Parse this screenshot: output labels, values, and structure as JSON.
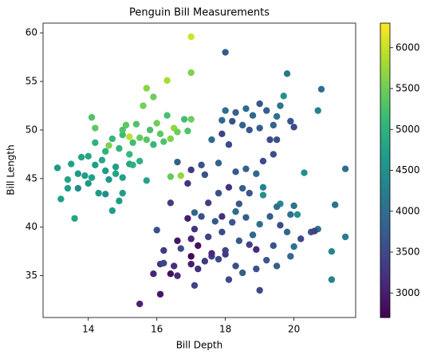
{
  "chart_data": {
    "type": "scatter",
    "title": "Penguin Bill Measurements",
    "x_label": "Bill Depth",
    "y_label": "Bill Length",
    "xlim": [
      12.68,
      21.8
    ],
    "ylim": [
      30.7,
      61.0
    ],
    "xticks": [
      14,
      16,
      18,
      20
    ],
    "yticks": [
      35,
      40,
      45,
      50,
      55,
      60
    ],
    "colormap": "viridis",
    "clim": [
      2700,
      6300
    ],
    "cticks": [
      3000,
      3500,
      4000,
      4500,
      5000,
      5500,
      6000
    ],
    "points": [
      [
        13.2,
        42.9,
        4750
      ],
      [
        13.1,
        46.1,
        4600
      ],
      [
        13.4,
        44.9,
        4800
      ],
      [
        13.5,
        46.5,
        4750
      ],
      [
        13.7,
        45.5,
        4650
      ],
      [
        13.7,
        44.0,
        4400
      ],
      [
        13.8,
        47.2,
        4800
      ],
      [
        13.9,
        45.3,
        4700
      ],
      [
        14.0,
        44.5,
        4600
      ],
      [
        14.0,
        47.3,
        4800
      ],
      [
        14.1,
        45.1,
        4750
      ],
      [
        14.2,
        48.7,
        5000
      ],
      [
        14.2,
        46.4,
        4700
      ],
      [
        14.3,
        43.5,
        4650
      ],
      [
        14.4,
        46.9,
        4850
      ],
      [
        14.5,
        45.8,
        4700
      ],
      [
        14.5,
        47.8,
        5000
      ],
      [
        14.6,
        44.9,
        4600
      ],
      [
        14.7,
        49.1,
        5100
      ],
      [
        14.8,
        45.5,
        4800
      ],
      [
        14.8,
        46.2,
        4700
      ],
      [
        14.9,
        48.1,
        5050
      ],
      [
        14.9,
        42.7,
        4650
      ],
      [
        15.0,
        45.1,
        4750
      ],
      [
        15.0,
        49.5,
        5150
      ],
      [
        15.0,
        50.0,
        5300
      ],
      [
        15.1,
        50.5,
        5400
      ],
      [
        15.2,
        47.5,
        5100
      ],
      [
        15.2,
        46.5,
        4800
      ],
      [
        15.3,
        48.7,
        5200
      ],
      [
        15.4,
        50.6,
        5300
      ],
      [
        15.5,
        49.2,
        5450
      ],
      [
        15.5,
        46.8,
        5000
      ],
      [
        15.6,
        52.5,
        5550
      ],
      [
        15.7,
        49.0,
        5350
      ],
      [
        15.7,
        54.3,
        5650
      ],
      [
        15.8,
        50.0,
        5250
      ],
      [
        15.9,
        53.4,
        5500
      ],
      [
        15.9,
        48.5,
        5100
      ],
      [
        16.0,
        50.7,
        5500
      ],
      [
        16.1,
        49.6,
        5400
      ],
      [
        16.2,
        48.8,
        5300
      ],
      [
        16.3,
        55.1,
        5850
      ],
      [
        16.4,
        49.1,
        5600
      ],
      [
        16.5,
        50.2,
        5700
      ],
      [
        16.6,
        49.8,
        5500
      ],
      [
        16.4,
        45.2,
        5450
      ],
      [
        16.7,
        45.3,
        5700
      ],
      [
        16.9,
        49.9,
        5300
      ],
      [
        17.0,
        51.1,
        5500
      ],
      [
        17.0,
        55.9,
        5600
      ],
      [
        17.0,
        59.6,
        6050
      ],
      [
        14.1,
        51.3,
        5300
      ],
      [
        14.2,
        50.2,
        5400
      ],
      [
        13.6,
        40.9,
        4800
      ],
      [
        14.5,
        43.4,
        4450
      ],
      [
        15.0,
        43.5,
        4700
      ],
      [
        14.7,
        41.7,
        4700
      ],
      [
        16.8,
        51.1,
        5200
      ],
      [
        16.3,
        51.5,
        5250
      ],
      [
        13.4,
        44.0,
        4700
      ],
      [
        14.6,
        48.4,
        5600
      ],
      [
        15.2,
        49.3,
        5950
      ],
      [
        15.7,
        44.8,
        4800
      ],
      [
        15.3,
        46.4,
        5000
      ],
      [
        17.9,
        51.0,
        3900
      ],
      [
        18.0,
        52.0,
        4000
      ],
      [
        18.3,
        51.8,
        3800
      ],
      [
        18.6,
        52.2,
        3950
      ],
      [
        18.8,
        51.5,
        3900
      ],
      [
        19.0,
        52.7,
        3700
      ],
      [
        19.2,
        52.0,
        3800
      ],
      [
        19.4,
        50.5,
        3850
      ],
      [
        19.5,
        51.4,
        4050
      ],
      [
        19.7,
        53.5,
        4500
      ],
      [
        19.6,
        52.5,
        4100
      ],
      [
        19.0,
        50.2,
        3800
      ],
      [
        18.7,
        50.0,
        3700
      ],
      [
        18.5,
        50.5,
        3850
      ],
      [
        18.2,
        50.9,
        3600
      ],
      [
        17.9,
        49.6,
        3400
      ],
      [
        17.6,
        49.0,
        3900
      ],
      [
        18.1,
        48.5,
        3500
      ],
      [
        19.3,
        49.0,
        3500
      ],
      [
        19.5,
        49.0,
        3600
      ],
      [
        19.9,
        50.9,
        3650
      ],
      [
        20.0,
        50.3,
        3500
      ],
      [
        20.8,
        54.2,
        4000
      ],
      [
        20.7,
        52.0,
        4300
      ],
      [
        19.8,
        55.8,
        4100
      ],
      [
        18.0,
        58.0,
        3700
      ],
      [
        17.3,
        46.4,
        3600
      ],
      [
        17.8,
        46.6,
        3850
      ],
      [
        18.3,
        45.7,
        3700
      ],
      [
        18.6,
        46.0,
        3800
      ],
      [
        18.9,
        45.5,
        3900
      ],
      [
        19.1,
        46.8,
        3500
      ],
      [
        19.4,
        47.5,
        3550
      ],
      [
        16.6,
        46.7,
        3800
      ],
      [
        17.4,
        45.4,
        3600
      ],
      [
        16.4,
        42.5,
        3350
      ],
      [
        17.8,
        43.5,
        3600
      ],
      [
        18.4,
        42.4,
        3700
      ],
      [
        19.1,
        43.3,
        4500
      ],
      [
        20.3,
        45.6,
        4500
      ],
      [
        21.5,
        46.0,
        4000
      ],
      [
        17.0,
        45.9,
        3300
      ],
      [
        17.5,
        42.5,
        3350
      ],
      [
        18.7,
        43.5,
        3650
      ],
      [
        19.6,
        42.4,
        4400
      ],
      [
        15.5,
        32.1,
        3050
      ],
      [
        16.1,
        33.1,
        2900
      ],
      [
        17.1,
        34.0,
        3400
      ],
      [
        16.6,
        35.0,
        3150
      ],
      [
        15.9,
        35.2,
        3050
      ],
      [
        16.1,
        36.2,
        3300
      ],
      [
        16.5,
        36.0,
        3200
      ],
      [
        17.0,
        36.2,
        3000
      ],
      [
        17.2,
        35.7,
        3200
      ],
      [
        17.4,
        36.5,
        3300
      ],
      [
        17.6,
        37.0,
        3400
      ],
      [
        17.8,
        36.7,
        3500
      ],
      [
        18.0,
        37.6,
        3450
      ],
      [
        18.3,
        36.0,
        3550
      ],
      [
        18.5,
        35.3,
        3800
      ],
      [
        18.9,
        35.7,
        3600
      ],
      [
        19.0,
        33.5,
        3500
      ],
      [
        19.2,
        36.6,
        3700
      ],
      [
        19.5,
        36.0,
        3800
      ],
      [
        19.9,
        37.0,
        3900
      ],
      [
        20.0,
        38.0,
        4100
      ],
      [
        20.5,
        39.5,
        3600
      ],
      [
        20.7,
        39.8,
        4000
      ],
      [
        21.1,
        37.5,
        4350
      ],
      [
        21.1,
        34.6,
        4300
      ],
      [
        21.2,
        42.3,
        4100
      ],
      [
        21.5,
        39.0,
        4200
      ],
      [
        16.2,
        37.6,
        3300
      ],
      [
        16.7,
        37.8,
        3500
      ],
      [
        17.0,
        38.8,
        3100
      ],
      [
        17.5,
        39.0,
        3400
      ],
      [
        17.9,
        39.5,
        3500
      ],
      [
        18.2,
        40.5,
        3650
      ],
      [
        18.4,
        38.6,
        3700
      ],
      [
        18.6,
        41.0,
        3750
      ],
      [
        18.8,
        39.2,
        3900
      ],
      [
        19.0,
        40.3,
        4000
      ],
      [
        19.3,
        41.1,
        3800
      ],
      [
        19.6,
        40.2,
        3500
      ],
      [
        19.9,
        41.3,
        4000
      ],
      [
        20.1,
        41.3,
        4500
      ],
      [
        20.6,
        39.6,
        3400
      ],
      [
        20.0,
        42.2,
        4050
      ],
      [
        19.5,
        42.1,
        4000
      ],
      [
        19.1,
        44.1,
        4300
      ],
      [
        18.5,
        44.0,
        3800
      ],
      [
        18.1,
        44.1,
        3250
      ],
      [
        17.9,
        41.1,
        3200
      ],
      [
        17.3,
        41.1,
        3600
      ],
      [
        16.9,
        40.9,
        3000
      ],
      [
        16.6,
        38.6,
        2900
      ],
      [
        16.0,
        39.7,
        3600
      ],
      [
        16.2,
        36.3,
        3450
      ],
      [
        16.4,
        35.2,
        2850
      ],
      [
        17.1,
        39.8,
        3250
      ],
      [
        17.6,
        37.3,
        3150
      ],
      [
        18.1,
        34.6,
        3500
      ],
      [
        17.0,
        37.0,
        2750
      ],
      [
        18.3,
        41.6,
        3950
      ],
      [
        17.7,
        40.6,
        3750
      ],
      [
        19.4,
        38.1,
        3650
      ],
      [
        18.7,
        38.2,
        3400
      ],
      [
        18.9,
        37.7,
        3150
      ],
      [
        17.2,
        38.1,
        2850
      ],
      [
        19.8,
        39.5,
        3900
      ],
      [
        20.2,
        38.8,
        3500
      ],
      [
        16.9,
        44.5,
        3250
      ],
      [
        17.1,
        41.5,
        3850
      ],
      [
        18.0,
        37.2,
        3300
      ]
    ]
  }
}
